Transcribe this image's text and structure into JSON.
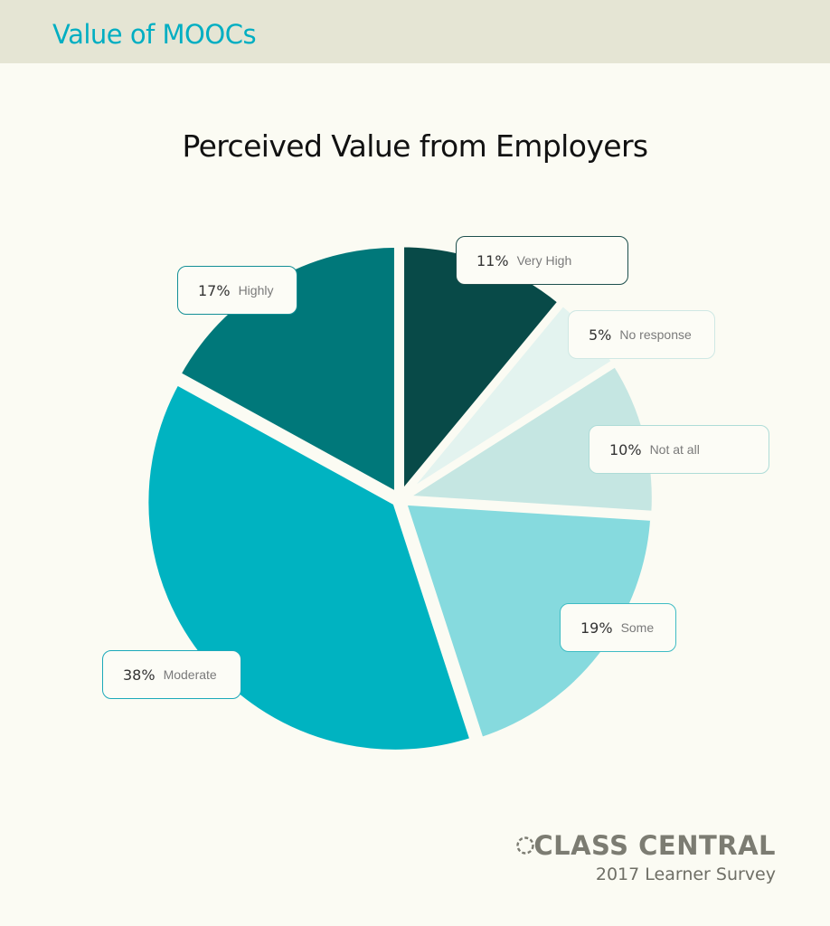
{
  "header": {
    "title": "Value of MOOCs"
  },
  "chart_data": {
    "type": "pie",
    "title": "Perceived Value from Employers",
    "slices": [
      {
        "label": "Very High",
        "pct_text": "11%",
        "value": 11,
        "color": "#084a48"
      },
      {
        "label": "No response",
        "pct_text": "5%",
        "value": 5,
        "color": "#e3f3ef"
      },
      {
        "label": "Not at all",
        "pct_text": "10%",
        "value": 10,
        "color": "#c5e6e2"
      },
      {
        "label": "Some",
        "pct_text": "19%",
        "value": 19,
        "color": "#86dade"
      },
      {
        "label": "Moderate",
        "pct_text": "38%",
        "value": 38,
        "color": "#00b3c1"
      },
      {
        "label": "Highly",
        "pct_text": "17%",
        "value": 17,
        "color": "#00787a"
      }
    ]
  },
  "brand": {
    "name": "CLASS CENTRAL",
    "subtitle": "2017 Learner Survey"
  }
}
